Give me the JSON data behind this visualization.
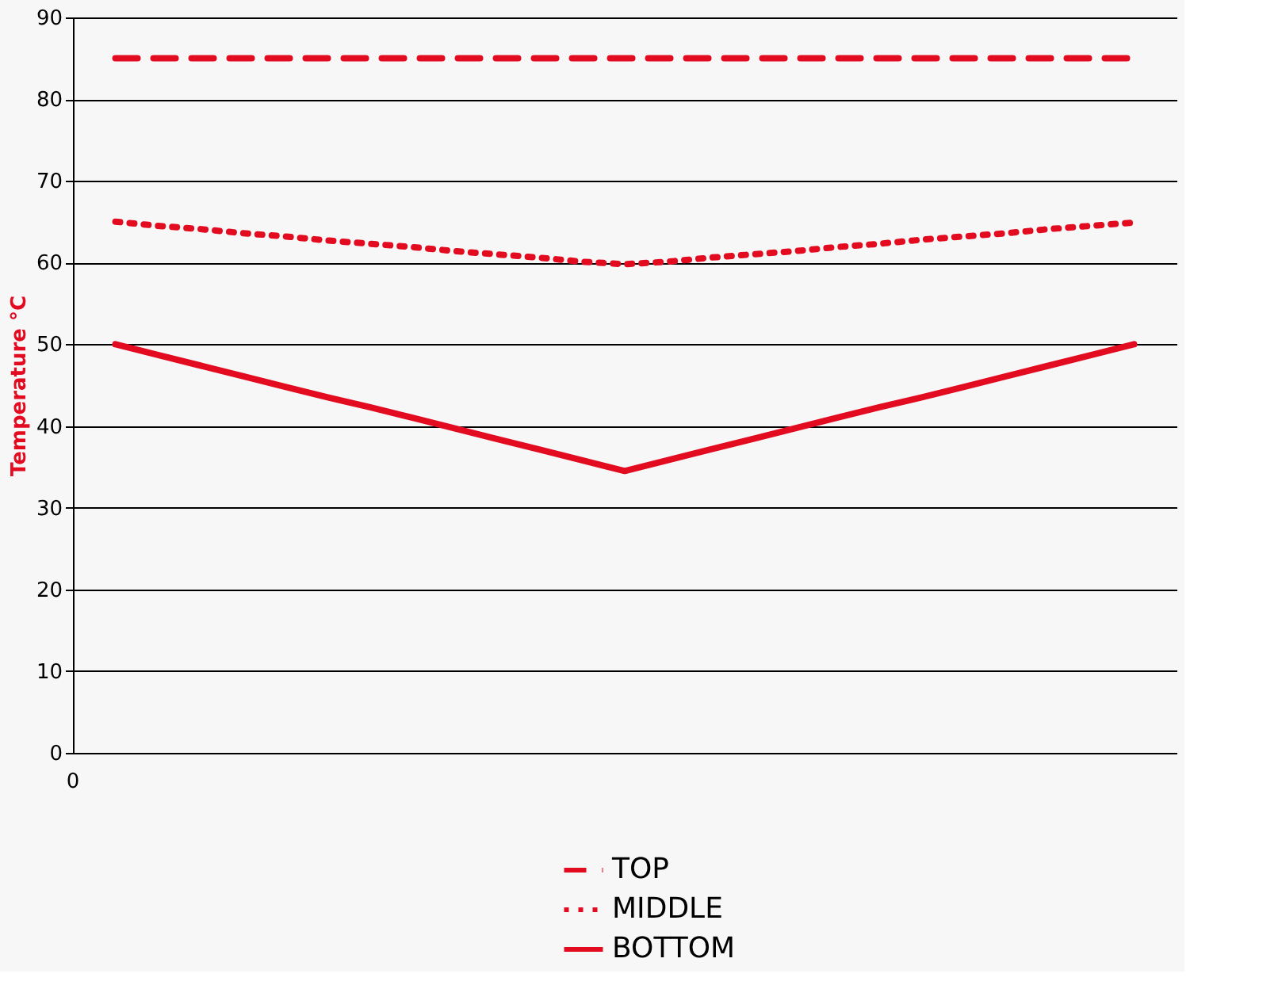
{
  "chart_data": {
    "type": "line",
    "ylabel": "Temperature °C",
    "annotations": [
      "0"
    ],
    "ylim": [
      0,
      90
    ],
    "categories": [
      null,
      null,
      null,
      null,
      null,
      null,
      null,
      null,
      null,
      null,
      null,
      null,
      null,
      null,
      null,
      null,
      null,
      null,
      null,
      null,
      null,
      null,
      null,
      null,
      null
    ],
    "yticks": [
      0,
      10,
      20,
      30,
      40,
      50,
      60,
      70,
      80,
      90
    ],
    "grid": "y",
    "legend": "bottom",
    "series": [
      {
        "name": "TOP",
        "color": "#e30b20",
        "line_style": "dashed",
        "values": [
          85,
          85,
          85,
          85,
          85,
          85,
          85,
          85,
          85,
          85,
          85,
          85,
          85,
          85,
          85,
          85,
          85,
          85,
          85,
          85,
          85,
          85,
          85,
          85,
          85
        ]
      },
      {
        "name": "MIDDLE",
        "color": "#e30b20",
        "line_style": "dotted",
        "values": [
          65,
          64.5,
          64.1,
          63.6,
          63.2,
          62.7,
          62.3,
          61.9,
          61.4,
          61,
          60.6,
          60.1,
          59.8,
          60.1,
          60.6,
          61,
          61.4,
          61.9,
          62.3,
          62.8,
          63.2,
          63.6,
          64.1,
          64.5,
          64.9
        ]
      },
      {
        "name": "BOTTOM",
        "color": "#e30b20",
        "line_style": "solid",
        "values": [
          50,
          48.7,
          47.4,
          46.1,
          44.8,
          43.5,
          42.3,
          41,
          39.7,
          38.4,
          37.1,
          35.8,
          34.5,
          35.8,
          37.1,
          38.4,
          39.7,
          41,
          42.3,
          43.5,
          44.8,
          46.1,
          47.4,
          48.7,
          50
        ]
      }
    ]
  }
}
